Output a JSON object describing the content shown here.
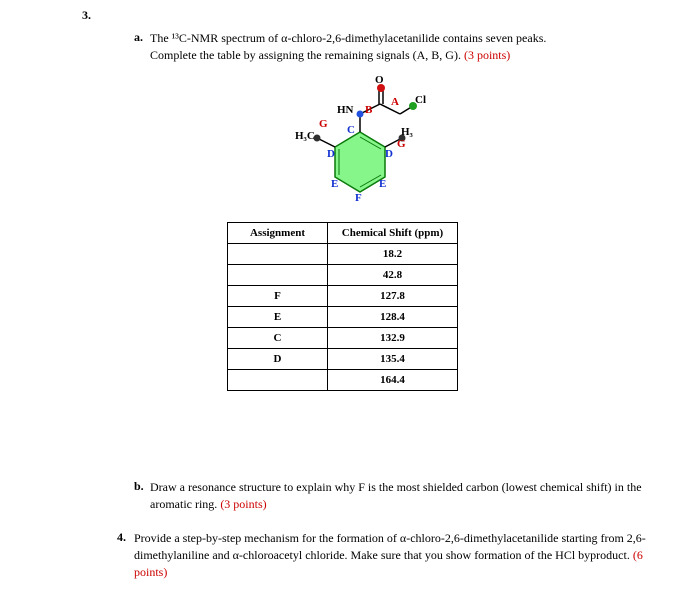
{
  "question3": {
    "number": "3.",
    "partA": {
      "letter": "a.",
      "text_line1": "The ¹³C-NMR spectrum of α-chloro-2,6-dimethylacetanilide contains seven peaks.",
      "text_line2": "Complete the table by assigning the remaining signals (A, B, G). ",
      "points": "(3 points)"
    },
    "partB": {
      "letter": "b.",
      "text": "Draw a resonance structure to explain why F is the most shielded carbon (lowest chemical shift) in the aromatic ring. ",
      "points": "(3 points)"
    }
  },
  "question4": {
    "number": "4.",
    "text": "Provide a step-by-step mechanism for the formation of α-chloro-2,6-dimethylacetanilide starting from 2,6-dimethylaniline and α-chloroacetyl chloride.  Make sure that you show formation of the HCl byproduct. ",
    "points": "(6 points)"
  },
  "table": {
    "header_assignment": "Assignment",
    "header_shift": "Chemical Shift (ppm)",
    "rows": [
      {
        "assignment": "",
        "shift": "18.2"
      },
      {
        "assignment": "",
        "shift": "42.8"
      },
      {
        "assignment": "F",
        "shift": "127.8"
      },
      {
        "assignment": "E",
        "shift": "128.4"
      },
      {
        "assignment": "C",
        "shift": "132.9"
      },
      {
        "assignment": "D",
        "shift": "135.4"
      },
      {
        "assignment": "",
        "shift": "164.4"
      }
    ]
  },
  "molecule": {
    "labels": {
      "O": "O",
      "A": "A",
      "Cl": "Cl",
      "HN": "HN",
      "B": "B",
      "G_left": "G",
      "H3C_left": "H₃C",
      "C_center": "C",
      "H3_right": "H₃",
      "G_right": "G",
      "D_left": "D",
      "D_right": "D",
      "E_left": "E",
      "E_right": "E",
      "F": "F"
    },
    "colors": {
      "red": "#cc0000",
      "blue": "#1030d0",
      "black": "#000000",
      "ring_fill": "#86f58a",
      "ring_stroke": "#0a7a0a",
      "bond": "#000000",
      "O_fill": "#d01010",
      "N_fill": "#2050e0",
      "Cl_fill": "#20a020",
      "C_ball": "#303030"
    }
  }
}
